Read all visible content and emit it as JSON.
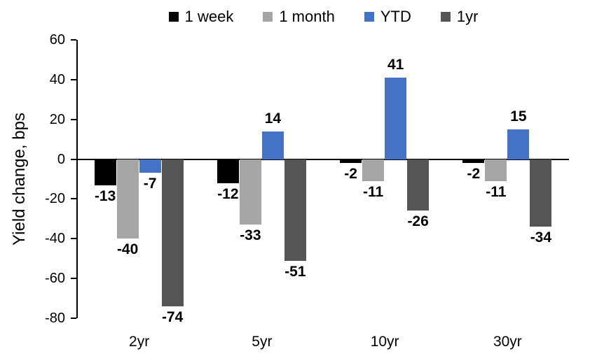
{
  "chart_data": {
    "type": "bar",
    "title": "",
    "xlabel": "",
    "ylabel": "Yield change, bps",
    "categories": [
      "2yr",
      "5yr",
      "10yr",
      "30yr"
    ],
    "series": [
      {
        "name": "1 week",
        "color": "#000000",
        "values": [
          -13,
          -12,
          -2,
          -2
        ]
      },
      {
        "name": "1 month",
        "color": "#A5A5A5",
        "values": [
          -40,
          -33,
          -11,
          -11
        ]
      },
      {
        "name": "YTD",
        "color": "#4472C4",
        "values": [
          -7,
          14,
          41,
          15
        ]
      },
      {
        "name": "1yr",
        "color": "#555555",
        "values": [
          -74,
          -51,
          -26,
          -34
        ]
      }
    ],
    "ylim": [
      -80,
      60
    ],
    "ytick_step": 20,
    "grid": false,
    "legend_position": "top",
    "axis_color": "#000000",
    "label_color": "#000000",
    "background": "#FFFFFF"
  }
}
